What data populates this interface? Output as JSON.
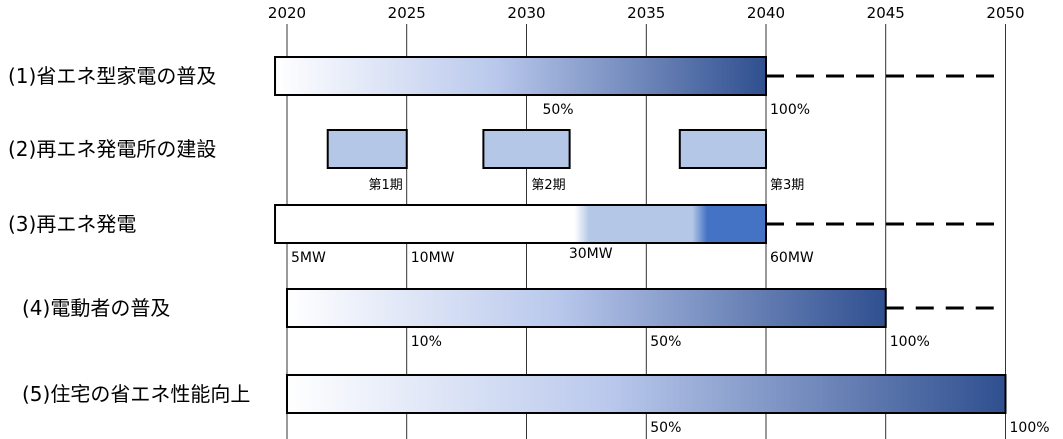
{
  "years": [
    "2020",
    "2025",
    "2030",
    "2035",
    "2040",
    "2045",
    "2050"
  ],
  "rows": [
    {
      "title": "(1)省エネ型家電の普及",
      "bar": {
        "start": 2019.5,
        "end": 2040,
        "fill": "gradient",
        "from": "#ffffff",
        "to": "#2f4f8f"
      },
      "dashed_to": 2050,
      "milestones": [
        {
          "year": 2030.5,
          "text": "50%"
        },
        {
          "year": 2040,
          "text": "100%"
        }
      ]
    },
    {
      "title": "(2)再エネ発電所の建設",
      "phases": [
        {
          "start": 2021.7,
          "end": 2025,
          "label": "第1期"
        },
        {
          "start": 2028.2,
          "end": 2031.8,
          "label": "第2期"
        },
        {
          "start": 2036.4,
          "end": 2040,
          "label": "第3期"
        }
      ],
      "phase_fill": "#b4c7e7"
    },
    {
      "title": "(3)再エネ発電",
      "bar": {
        "start": 2019.5,
        "end": 2040,
        "fill": "stepped",
        "steps": [
          {
            "at": 2025,
            "color": "#ffffff"
          },
          {
            "at": 2031.8,
            "color": "#b4c7e7"
          },
          {
            "at": 2040,
            "color": "#4472c4"
          }
        ]
      },
      "dashed_to": 2050,
      "milestones": [
        {
          "year": 2020,
          "text": "5MW"
        },
        {
          "year": 2025,
          "text": "10MW"
        },
        {
          "year": 2031.6,
          "text": "30MW"
        },
        {
          "year": 2040,
          "text": "60MW"
        }
      ]
    },
    {
      "title": "(4)電動者の普及",
      "bar": {
        "start": 2020,
        "end": 2045,
        "fill": "gradient",
        "from": "#ffffff",
        "to": "#2f4f8f"
      },
      "dashed_to": 2050,
      "milestones": [
        {
          "year": 2025,
          "text": "10%"
        },
        {
          "year": 2035,
          "text": "50%"
        },
        {
          "year": 2045,
          "text": "100%"
        }
      ]
    },
    {
      "title": "(5)住宅の省エネ性能向上",
      "bar": {
        "start": 2020,
        "end": 2050,
        "fill": "gradient",
        "from": "#ffffff",
        "to": "#2f4f8f"
      },
      "milestones": [
        {
          "year": 2035,
          "text": "50%"
        },
        {
          "year": 2050,
          "text": "100%"
        }
      ]
    }
  ]
}
